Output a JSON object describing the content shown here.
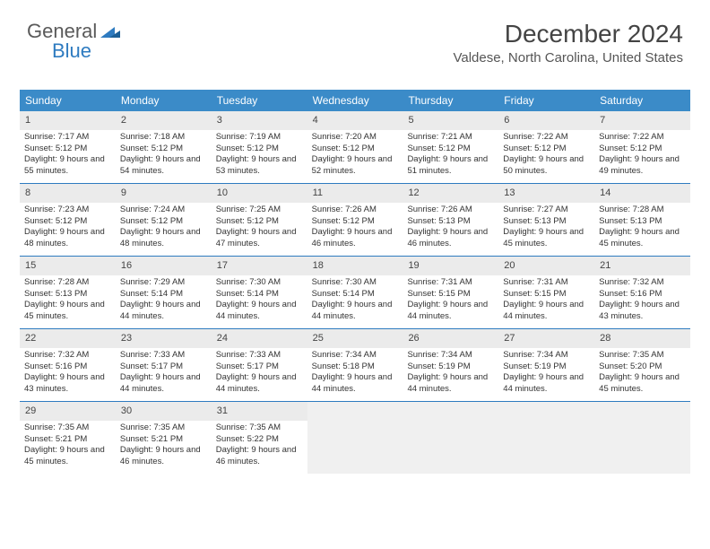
{
  "logo": {
    "word1": "General",
    "word2": "Blue"
  },
  "header": {
    "title": "December 2024",
    "location": "Valdese, North Carolina, United States"
  },
  "colors": {
    "header_bg": "#3b8bc8",
    "header_text": "#ffffff",
    "rule": "#2e7bc0",
    "daynum_bg": "#ebebeb",
    "empty_bg": "#f0f0f0",
    "text": "#333333"
  },
  "day_headers": [
    "Sunday",
    "Monday",
    "Tuesday",
    "Wednesday",
    "Thursday",
    "Friday",
    "Saturday"
  ],
  "weeks": [
    [
      {
        "n": "1",
        "sunrise": "Sunrise: 7:17 AM",
        "sunset": "Sunset: 5:12 PM",
        "daylight": "Daylight: 9 hours and 55 minutes."
      },
      {
        "n": "2",
        "sunrise": "Sunrise: 7:18 AM",
        "sunset": "Sunset: 5:12 PM",
        "daylight": "Daylight: 9 hours and 54 minutes."
      },
      {
        "n": "3",
        "sunrise": "Sunrise: 7:19 AM",
        "sunset": "Sunset: 5:12 PM",
        "daylight": "Daylight: 9 hours and 53 minutes."
      },
      {
        "n": "4",
        "sunrise": "Sunrise: 7:20 AM",
        "sunset": "Sunset: 5:12 PM",
        "daylight": "Daylight: 9 hours and 52 minutes."
      },
      {
        "n": "5",
        "sunrise": "Sunrise: 7:21 AM",
        "sunset": "Sunset: 5:12 PM",
        "daylight": "Daylight: 9 hours and 51 minutes."
      },
      {
        "n": "6",
        "sunrise": "Sunrise: 7:22 AM",
        "sunset": "Sunset: 5:12 PM",
        "daylight": "Daylight: 9 hours and 50 minutes."
      },
      {
        "n": "7",
        "sunrise": "Sunrise: 7:22 AM",
        "sunset": "Sunset: 5:12 PM",
        "daylight": "Daylight: 9 hours and 49 minutes."
      }
    ],
    [
      {
        "n": "8",
        "sunrise": "Sunrise: 7:23 AM",
        "sunset": "Sunset: 5:12 PM",
        "daylight": "Daylight: 9 hours and 48 minutes."
      },
      {
        "n": "9",
        "sunrise": "Sunrise: 7:24 AM",
        "sunset": "Sunset: 5:12 PM",
        "daylight": "Daylight: 9 hours and 48 minutes."
      },
      {
        "n": "10",
        "sunrise": "Sunrise: 7:25 AM",
        "sunset": "Sunset: 5:12 PM",
        "daylight": "Daylight: 9 hours and 47 minutes."
      },
      {
        "n": "11",
        "sunrise": "Sunrise: 7:26 AM",
        "sunset": "Sunset: 5:12 PM",
        "daylight": "Daylight: 9 hours and 46 minutes."
      },
      {
        "n": "12",
        "sunrise": "Sunrise: 7:26 AM",
        "sunset": "Sunset: 5:13 PM",
        "daylight": "Daylight: 9 hours and 46 minutes."
      },
      {
        "n": "13",
        "sunrise": "Sunrise: 7:27 AM",
        "sunset": "Sunset: 5:13 PM",
        "daylight": "Daylight: 9 hours and 45 minutes."
      },
      {
        "n": "14",
        "sunrise": "Sunrise: 7:28 AM",
        "sunset": "Sunset: 5:13 PM",
        "daylight": "Daylight: 9 hours and 45 minutes."
      }
    ],
    [
      {
        "n": "15",
        "sunrise": "Sunrise: 7:28 AM",
        "sunset": "Sunset: 5:13 PM",
        "daylight": "Daylight: 9 hours and 45 minutes."
      },
      {
        "n": "16",
        "sunrise": "Sunrise: 7:29 AM",
        "sunset": "Sunset: 5:14 PM",
        "daylight": "Daylight: 9 hours and 44 minutes."
      },
      {
        "n": "17",
        "sunrise": "Sunrise: 7:30 AM",
        "sunset": "Sunset: 5:14 PM",
        "daylight": "Daylight: 9 hours and 44 minutes."
      },
      {
        "n": "18",
        "sunrise": "Sunrise: 7:30 AM",
        "sunset": "Sunset: 5:14 PM",
        "daylight": "Daylight: 9 hours and 44 minutes."
      },
      {
        "n": "19",
        "sunrise": "Sunrise: 7:31 AM",
        "sunset": "Sunset: 5:15 PM",
        "daylight": "Daylight: 9 hours and 44 minutes."
      },
      {
        "n": "20",
        "sunrise": "Sunrise: 7:31 AM",
        "sunset": "Sunset: 5:15 PM",
        "daylight": "Daylight: 9 hours and 44 minutes."
      },
      {
        "n": "21",
        "sunrise": "Sunrise: 7:32 AM",
        "sunset": "Sunset: 5:16 PM",
        "daylight": "Daylight: 9 hours and 43 minutes."
      }
    ],
    [
      {
        "n": "22",
        "sunrise": "Sunrise: 7:32 AM",
        "sunset": "Sunset: 5:16 PM",
        "daylight": "Daylight: 9 hours and 43 minutes."
      },
      {
        "n": "23",
        "sunrise": "Sunrise: 7:33 AM",
        "sunset": "Sunset: 5:17 PM",
        "daylight": "Daylight: 9 hours and 44 minutes."
      },
      {
        "n": "24",
        "sunrise": "Sunrise: 7:33 AM",
        "sunset": "Sunset: 5:17 PM",
        "daylight": "Daylight: 9 hours and 44 minutes."
      },
      {
        "n": "25",
        "sunrise": "Sunrise: 7:34 AM",
        "sunset": "Sunset: 5:18 PM",
        "daylight": "Daylight: 9 hours and 44 minutes."
      },
      {
        "n": "26",
        "sunrise": "Sunrise: 7:34 AM",
        "sunset": "Sunset: 5:19 PM",
        "daylight": "Daylight: 9 hours and 44 minutes."
      },
      {
        "n": "27",
        "sunrise": "Sunrise: 7:34 AM",
        "sunset": "Sunset: 5:19 PM",
        "daylight": "Daylight: 9 hours and 44 minutes."
      },
      {
        "n": "28",
        "sunrise": "Sunrise: 7:35 AM",
        "sunset": "Sunset: 5:20 PM",
        "daylight": "Daylight: 9 hours and 45 minutes."
      }
    ],
    [
      {
        "n": "29",
        "sunrise": "Sunrise: 7:35 AM",
        "sunset": "Sunset: 5:21 PM",
        "daylight": "Daylight: 9 hours and 45 minutes."
      },
      {
        "n": "30",
        "sunrise": "Sunrise: 7:35 AM",
        "sunset": "Sunset: 5:21 PM",
        "daylight": "Daylight: 9 hours and 46 minutes."
      },
      {
        "n": "31",
        "sunrise": "Sunrise: 7:35 AM",
        "sunset": "Sunset: 5:22 PM",
        "daylight": "Daylight: 9 hours and 46 minutes."
      },
      null,
      null,
      null,
      null
    ]
  ]
}
